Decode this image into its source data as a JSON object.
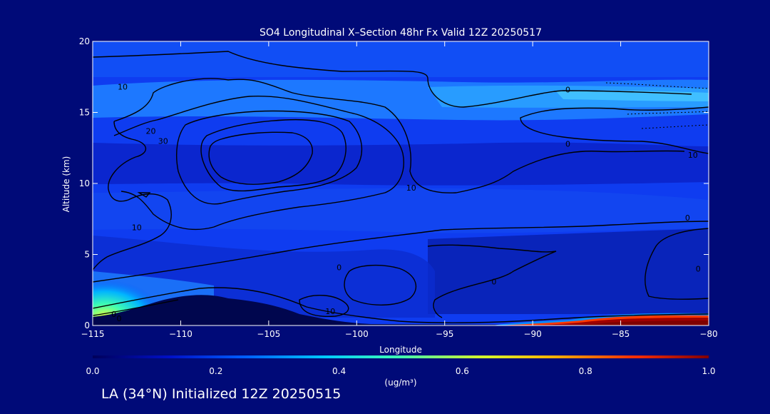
{
  "chart_data": {
    "type": "heatmap",
    "title": "SO4 Longitudinal X–Section 48hr  Fx Valid 12Z 20250517",
    "xlabel": "Longitude",
    "ylabel": "Altitude (km)",
    "xlim": [
      -115,
      -80
    ],
    "ylim": [
      0,
      20
    ],
    "x_ticks": [
      -115,
      -110,
      -105,
      -100,
      -95,
      -90,
      -85,
      -80
    ],
    "x_tick_labels": [
      "−115",
      "−110",
      "−105",
      "−100",
      "−95",
      "−90",
      "−85",
      "−80"
    ],
    "y_ticks": [
      0,
      5,
      10,
      15,
      20
    ],
    "y_tick_labels": [
      "0",
      "5",
      "10",
      "15",
      "20"
    ],
    "colorbar": {
      "min": 0.0,
      "max": 1.0,
      "ticks": [
        0.0,
        0.2,
        0.4,
        0.6,
        0.8,
        1.0
      ],
      "tick_labels": [
        "0.0",
        "0.2",
        "0.4",
        "0.6",
        "0.8",
        "1.0"
      ],
      "unit_label": "(ug/m³)",
      "colors": [
        "#00005a",
        "#0010c8",
        "#0060ff",
        "#00c8ff",
        "#40ffb0",
        "#d0ff30",
        "#ffb000",
        "#ff3000",
        "#800000"
      ]
    },
    "contour_levels": [
      "0",
      "10",
      "20",
      "30"
    ],
    "contour_labels": [
      {
        "text": "10",
        "x": -113.3,
        "y": 16.8
      },
      {
        "text": "20",
        "x": -111.7,
        "y": 13.7
      },
      {
        "text": "30",
        "x": -111.0,
        "y": 13.0
      },
      {
        "text": "10",
        "x": -96.9,
        "y": 9.7
      },
      {
        "text": "0",
        "x": -88.0,
        "y": 16.6
      },
      {
        "text": "0",
        "x": -88.0,
        "y": 12.8
      },
      {
        "text": "10",
        "x": -80.9,
        "y": 12.0
      },
      {
        "text": "0",
        "x": -81.2,
        "y": 7.6
      },
      {
        "text": "10",
        "x": -112.5,
        "y": 6.9
      },
      {
        "text": "0",
        "x": -101.0,
        "y": 4.1
      },
      {
        "text": "0",
        "x": -92.2,
        "y": 3.1
      },
      {
        "text": "0",
        "x": -80.6,
        "y": 4.0
      },
      {
        "text": "0",
        "x": -113.8,
        "y": 0.8
      },
      {
        "text": "0",
        "x": -113.5,
        "y": 0.5
      },
      {
        "text": "10",
        "x": -101.5,
        "y": 1.0
      }
    ]
  },
  "footer": {
    "subtitle": "LA (34°N) Initialized 12Z 20250515"
  }
}
